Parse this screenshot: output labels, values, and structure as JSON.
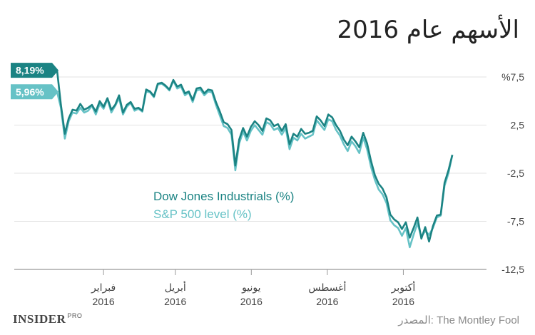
{
  "title": "الأسهم عام 2016",
  "source": {
    "label": "المصدر:",
    "name": "The Montley Fool"
  },
  "brand": {
    "name": "INSIDER",
    "suffix": "PRO"
  },
  "chart_data": {
    "type": "line",
    "ylim": [
      -12.5,
      7.5
    ],
    "yticks": [
      {
        "value": 7.5,
        "label": "%7,5"
      },
      {
        "value": 2.5,
        "label": "2,5"
      },
      {
        "value": -2.5,
        "label": "-2,5"
      },
      {
        "value": -7.5,
        "label": "-7,5"
      },
      {
        "value": -12.5,
        "label": "-12,5"
      }
    ],
    "xticks": [
      {
        "t": 0.89,
        "month": "فبراير",
        "year": "2016"
      },
      {
        "t": 0.72,
        "month": "أبريل",
        "year": "2016"
      },
      {
        "t": 0.54,
        "month": "يونيو",
        "year": "2016"
      },
      {
        "t": 0.36,
        "month": "أغسطس",
        "year": "2016"
      },
      {
        "t": 0.18,
        "month": "أكتوبر",
        "year": "2016"
      }
    ],
    "grid": true,
    "legend_position": "center-left",
    "colors": {
      "dow": "#1b8383",
      "sp": "#66c2c6",
      "grid": "#e3e3e3",
      "axis": "#999999"
    },
    "series": [
      {
        "name": "Dow Jones Industrials (%)",
        "end_label": "8,19%",
        "values": [
          8.19,
          4.6,
          1.6,
          3.2,
          4.1,
          4.0,
          4.7,
          4.1,
          4.3,
          4.6,
          3.9,
          5.0,
          4.4,
          5.3,
          4.1,
          4.6,
          5.6,
          3.8,
          4.6,
          4.9,
          4.2,
          4.3,
          4.0,
          6.2,
          6.0,
          5.5,
          6.8,
          6.9,
          6.6,
          6.2,
          7.2,
          6.5,
          6.7,
          5.8,
          6.0,
          5.1,
          6.3,
          6.4,
          5.8,
          6.2,
          6.1,
          4.9,
          3.9,
          2.8,
          2.6,
          2.0,
          -1.7,
          1.0,
          2.2,
          1.3,
          2.3,
          2.9,
          2.5,
          1.9,
          3.2,
          3.0,
          2.4,
          2.6,
          1.9,
          2.6,
          0.5,
          1.6,
          1.3,
          2.1,
          1.6,
          1.7,
          1.9,
          3.4,
          3.0,
          2.4,
          3.6,
          3.3,
          2.5,
          1.9,
          1.0,
          0.4,
          1.3,
          0.8,
          0.2,
          1.7,
          0.6,
          -1.2,
          -2.7,
          -3.6,
          -4.1,
          -5.0,
          -6.8,
          -7.3,
          -7.6,
          -8.3,
          -7.6,
          -9.2,
          -8.2,
          -7.1,
          -9.3,
          -8.1,
          -9.6,
          -8.0,
          -6.9,
          -6.8,
          -3.5,
          -2.2,
          -0.6
        ],
        "x_start": 1.0,
        "x_end": 0.064
      },
      {
        "name": "S&P 500 level (%)",
        "end_label": "5,96%",
        "values": [
          5.96,
          4.3,
          1.1,
          2.9,
          3.8,
          3.7,
          4.3,
          3.8,
          4.0,
          4.5,
          3.6,
          4.7,
          4.2,
          5.2,
          3.8,
          4.5,
          5.3,
          3.6,
          4.4,
          4.8,
          4.0,
          4.2,
          3.9,
          6.0,
          5.9,
          5.4,
          6.7,
          6.8,
          6.5,
          6.1,
          7.1,
          6.3,
          6.5,
          5.6,
          5.9,
          4.9,
          6.1,
          6.2,
          5.6,
          6.0,
          5.9,
          4.6,
          3.5,
          2.4,
          2.2,
          1.5,
          -2.2,
          0.6,
          1.8,
          0.9,
          1.9,
          2.5,
          2.0,
          1.5,
          2.8,
          2.6,
          2.0,
          2.2,
          1.5,
          2.2,
          0.0,
          1.2,
          0.9,
          1.6,
          1.1,
          1.3,
          1.5,
          3.0,
          2.5,
          2.0,
          3.1,
          2.9,
          2.0,
          1.4,
          0.5,
          -0.2,
          0.8,
          0.3,
          -0.4,
          1.2,
          0.0,
          -1.8,
          -3.2,
          -4.2,
          -4.7,
          -5.6,
          -7.4,
          -7.9,
          -8.2,
          -9.0,
          -8.2,
          -10.2,
          -8.9,
          -7.7,
          -9.1,
          -8.5,
          -8.9,
          -8.2,
          -7.1,
          -6.9,
          -3.8,
          -2.5,
          -0.6
        ],
        "x_start": 1.0,
        "x_end": 0.064
      }
    ]
  }
}
